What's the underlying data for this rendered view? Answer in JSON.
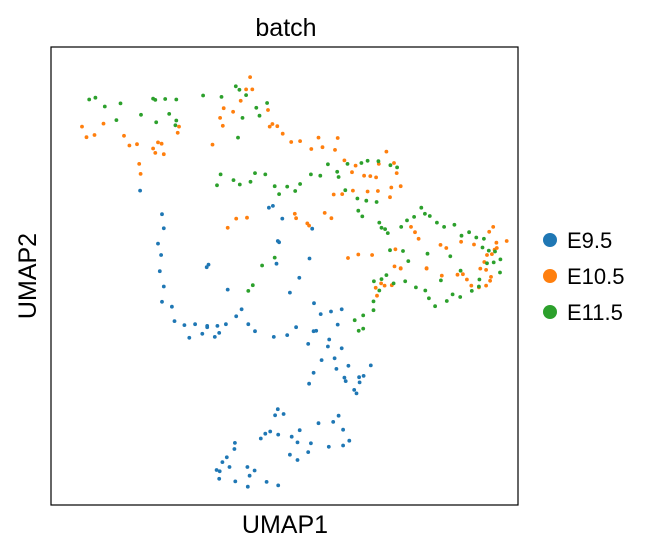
{
  "chart_data": {
    "type": "scatter",
    "title": "batch",
    "xlabel": "UMAP1",
    "ylabel": "UMAP2",
    "xlim": [
      0,
      100
    ],
    "ylim": [
      0,
      100
    ],
    "grid": false,
    "legend_position": "right",
    "series": [
      {
        "name": "E9.5",
        "color": "#1f77b4",
        "points": [
          [
            17.7,
            69.5
          ],
          [
            22.6,
            64.1
          ],
          [
            23.0,
            60.9
          ],
          [
            21.7,
            57.4
          ],
          [
            22.4,
            54.8
          ],
          [
            22.1,
            51.1
          ],
          [
            23.0,
            47.6
          ],
          [
            22.6,
            44.1
          ],
          [
            24.8,
            43.0
          ],
          [
            25.4,
            39.7
          ],
          [
            27.6,
            38.8
          ],
          [
            33.0,
            52.6
          ],
          [
            32.6,
            52.0
          ],
          [
            37.3,
            46.9
          ],
          [
            39.2,
            40.8
          ],
          [
            40.4,
            42.4
          ],
          [
            41.9,
            39.0
          ],
          [
            36.9,
            39.0
          ],
          [
            32.7,
            38.3
          ],
          [
            32.7,
            38.6
          ],
          [
            35.0,
            38.6
          ],
          [
            35.4,
            37.0
          ],
          [
            34.4,
            36.1
          ],
          [
            31.6,
            36.8
          ],
          [
            30.0,
            39.0
          ],
          [
            28.7,
            35.9
          ],
          [
            43.4,
            37.4
          ],
          [
            48.2,
            52.8
          ],
          [
            48.8,
            57.7
          ],
          [
            48.5,
            58.0
          ],
          [
            49.5,
            63.1
          ],
          [
            47.4,
            66.0
          ],
          [
            46.5,
            65.6
          ],
          [
            56.2,
            60.8
          ],
          [
            55.6,
            54.0
          ],
          [
            53.3,
            49.6
          ],
          [
            51.2,
            46.2
          ],
          [
            56.6,
            43.8
          ],
          [
            58.1,
            41.3
          ],
          [
            60.4,
            41.9
          ],
          [
            62.8,
            42.4
          ],
          [
            61.9,
            38.9
          ],
          [
            60.0,
            35.5
          ],
          [
            57.1,
            37.5
          ],
          [
            56.5,
            37.4
          ],
          [
            52.6,
            38.3
          ],
          [
            50.6,
            36.5
          ],
          [
            47.6,
            36.1
          ],
          [
            55.3,
            34.5
          ],
          [
            59.7,
            33.9
          ],
          [
            62.8,
            33.5
          ],
          [
            61.2,
            31.2
          ],
          [
            58.3,
            30.8
          ],
          [
            56.5,
            27.9
          ],
          [
            55.5,
            25.4
          ],
          [
            61.6,
            28.8
          ],
          [
            64.3,
            29.5
          ],
          [
            63.4,
            26.8
          ],
          [
            63.7,
            26.0
          ],
          [
            66.7,
            26.9
          ],
          [
            69.3,
            29.6
          ],
          [
            67.7,
            27.2
          ],
          [
            66.8,
            25.7
          ],
          [
            65.6,
            24.0
          ],
          [
            66.1,
            23.2
          ],
          [
            48.5,
            19.6
          ],
          [
            47.9,
            18.2
          ],
          [
            49.8,
            18.5
          ],
          [
            46.8,
            14.5
          ],
          [
            45.7,
            14.0
          ],
          [
            48.6,
            13.8
          ],
          [
            51.6,
            13.3
          ],
          [
            53.4,
            14.8
          ],
          [
            57.6,
            16.4
          ],
          [
            62.1,
            18.1
          ],
          [
            60.9,
            16.7
          ],
          [
            63.1,
            14.9
          ],
          [
            64.5,
            12.4
          ],
          [
            63.1,
            11.3
          ],
          [
            59.9,
            11.0
          ],
          [
            55.9,
            11.8
          ],
          [
            55.3,
            9.8
          ],
          [
            52.9,
            12.0
          ],
          [
            52.9,
            8.0
          ],
          [
            51.2,
            9.2
          ],
          [
            44.7,
            12.9
          ],
          [
            41.7,
            6.4
          ],
          [
            38.8,
            10.5
          ],
          [
            38.9,
            11.9
          ],
          [
            37.1,
            8.6
          ],
          [
            36.1,
            7.5
          ],
          [
            37.7,
            6.4
          ],
          [
            35.5,
            5.4
          ],
          [
            34.8,
            5.7
          ],
          [
            35.4,
            3.7
          ],
          [
            39.0,
            3.1
          ],
          [
            41.8,
            1.9
          ],
          [
            43.3,
            5.6
          ],
          [
            42.2,
            4.4
          ],
          [
            46.0,
            3.0
          ],
          [
            48.6,
            2.2
          ]
        ]
      },
      {
        "name": "E10.5",
        "color": "#ff7f0e",
        "points": [
          [
            4.7,
            84.1
          ],
          [
            5.7,
            81.7
          ],
          [
            7.5,
            82.2
          ],
          [
            9.5,
            84.8
          ],
          [
            14.1,
            82.0
          ],
          [
            15.3,
            79.8
          ],
          [
            17.0,
            80.1
          ],
          [
            20.6,
            79.1
          ],
          [
            21.7,
            80.5
          ],
          [
            22.5,
            80.2
          ],
          [
            21.1,
            78.1
          ],
          [
            23.0,
            77.8
          ],
          [
            17.8,
            73.3
          ],
          [
            17.5,
            75.6
          ],
          [
            33.9,
            80.0
          ],
          [
            26.1,
            82.7
          ],
          [
            26.4,
            84.1
          ],
          [
            36.2,
            84.3
          ],
          [
            35.6,
            86.1
          ],
          [
            36.4,
            88.3
          ],
          [
            38.5,
            87.5
          ],
          [
            40.2,
            90.0
          ],
          [
            41.4,
            92.6
          ],
          [
            42.8,
            92.6
          ],
          [
            42.3,
            95.4
          ],
          [
            46.3,
            87.9
          ],
          [
            47.3,
            84.7
          ],
          [
            46.7,
            84.1
          ],
          [
            48.4,
            84.2
          ],
          [
            49.6,
            82.5
          ],
          [
            51.5,
            80.6
          ],
          [
            53.5,
            80.8
          ],
          [
            57.6,
            81.6
          ],
          [
            56.0,
            79.0
          ],
          [
            58.5,
            79.4
          ],
          [
            61.9,
            81.5
          ],
          [
            61.3,
            78.8
          ],
          [
            63.4,
            76.4
          ],
          [
            65.9,
            75.2
          ],
          [
            65.1,
            73.7
          ],
          [
            67.8,
            72.9
          ],
          [
            69.2,
            72.8
          ],
          [
            70.5,
            72.5
          ],
          [
            71.1,
            75.6
          ],
          [
            72.8,
            78.4
          ],
          [
            74.5,
            75.8
          ],
          [
            75.1,
            73.5
          ],
          [
            76.0,
            70.5
          ],
          [
            73.9,
            70.2
          ],
          [
            73.6,
            68.0
          ],
          [
            70.9,
            69.4
          ],
          [
            68.6,
            69.3
          ],
          [
            65.3,
            69.5
          ],
          [
            62.9,
            68.7
          ],
          [
            61.0,
            68.6
          ],
          [
            59.0,
            64.4
          ],
          [
            55.1,
            62.0
          ],
          [
            55.5,
            61.5
          ],
          [
            52.6,
            63.2
          ],
          [
            52.3,
            64.2
          ],
          [
            41.6,
            63.3
          ],
          [
            39.2,
            63.1
          ],
          [
            37.3,
            61.0
          ],
          [
            60.5,
            63.2
          ],
          [
            64.2,
            54.1
          ],
          [
            66.5,
            54.9
          ],
          [
            69.6,
            54.8
          ],
          [
            74.6,
            52.2
          ],
          [
            76.0,
            51.7
          ],
          [
            76.0,
            51.8
          ],
          [
            72.4,
            47.8
          ],
          [
            70.7,
            45.5
          ],
          [
            70.4,
            47.3
          ],
          [
            71.6,
            48.3
          ],
          [
            74.0,
            47.9
          ],
          [
            81.8,
            51.7
          ],
          [
            81.8,
            51.8
          ],
          [
            85.2,
            50.1
          ],
          [
            88.7,
            50.3
          ],
          [
            89.9,
            50.4
          ],
          [
            90.8,
            49.2
          ],
          [
            91.8,
            47.8
          ],
          [
            93.5,
            47.4
          ],
          [
            95.1,
            47.8
          ],
          [
            96.0,
            48.9
          ],
          [
            96.2,
            49.8
          ],
          [
            95.1,
            51.4
          ],
          [
            93.8,
            51.7
          ],
          [
            94.7,
            53.2
          ],
          [
            95.3,
            54.8
          ],
          [
            96.4,
            55.0
          ],
          [
            97.0,
            56.0
          ],
          [
            97.4,
            57.6
          ],
          [
            95.8,
            60.1
          ],
          [
            96.7,
            61.2
          ],
          [
            99.7,
            58.0
          ],
          [
            97.5,
            56.4
          ],
          [
            92.4,
            57.2
          ],
          [
            89.5,
            57.8
          ],
          [
            86.2,
            56.4
          ],
          [
            84.9,
            57.1
          ],
          [
            80.0,
            58.5
          ],
          [
            79.2,
            60.0
          ],
          [
            78.3,
            61.2
          ],
          [
            74.8,
            56.1
          ]
        ]
      },
      {
        "name": "E11.5",
        "color": "#2ca02c",
        "points": [
          [
            6.3,
            90.3
          ],
          [
            7.7,
            90.7
          ],
          [
            9.8,
            88.7
          ],
          [
            13.3,
            89.4
          ],
          [
            12.4,
            85.6
          ],
          [
            17.9,
            86.8
          ],
          [
            20.6,
            90.5
          ],
          [
            21.1,
            90.2
          ],
          [
            23.3,
            90.4
          ],
          [
            25.8,
            90.3
          ],
          [
            25.8,
            85.5
          ],
          [
            25.6,
            84.4
          ],
          [
            24.2,
            87.0
          ],
          [
            21.3,
            85.1
          ],
          [
            31.8,
            91.2
          ],
          [
            35.9,
            90.9
          ],
          [
            39.1,
            93.3
          ],
          [
            39.9,
            92.5
          ],
          [
            41.4,
            91.3
          ],
          [
            43.7,
            88.4
          ],
          [
            44.4,
            86.6
          ],
          [
            46.1,
            89.5
          ],
          [
            40.6,
            86.1
          ],
          [
            39.6,
            81.6
          ],
          [
            35.7,
            73.2
          ],
          [
            34.9,
            70.7
          ],
          [
            38.6,
            71.9
          ],
          [
            40.0,
            70.9
          ],
          [
            42.4,
            71.5
          ],
          [
            43.4,
            73.5
          ],
          [
            45.7,
            73.2
          ],
          [
            47.8,
            70.5
          ],
          [
            48.8,
            68.7
          ],
          [
            50.6,
            70.4
          ],
          [
            52.4,
            69.4
          ],
          [
            53.5,
            71.0
          ],
          [
            55.9,
            73.2
          ],
          [
            58.0,
            72.9
          ],
          [
            59.7,
            75.5
          ],
          [
            61.8,
            73.8
          ],
          [
            64.1,
            75.6
          ],
          [
            67.2,
            75.8
          ],
          [
            68.6,
            76.3
          ],
          [
            71.0,
            76.2
          ],
          [
            73.7,
            75.3
          ],
          [
            75.2,
            74.8
          ],
          [
            70.6,
            66.9
          ],
          [
            68.3,
            67.2
          ],
          [
            66.5,
            64.9
          ],
          [
            67.4,
            63.6
          ],
          [
            71.2,
            62.2
          ],
          [
            71.7,
            61.0
          ],
          [
            72.5,
            60.7
          ],
          [
            73.1,
            59.8
          ],
          [
            76.1,
            61.2
          ],
          [
            77.4,
            62.7
          ],
          [
            79.0,
            63.5
          ],
          [
            80.6,
            65.6
          ],
          [
            81.4,
            64.2
          ],
          [
            82.5,
            63.7
          ],
          [
            84.1,
            62.2
          ],
          [
            85.7,
            61.2
          ],
          [
            88.0,
            61.7
          ],
          [
            89.6,
            59.2
          ],
          [
            91.3,
            60.0
          ],
          [
            92.9,
            58.8
          ],
          [
            94.3,
            56.5
          ],
          [
            94.6,
            58.5
          ],
          [
            95.7,
            55.8
          ],
          [
            97.1,
            55.6
          ],
          [
            98.3,
            53.8
          ],
          [
            96.8,
            53.1
          ],
          [
            95.3,
            52.9
          ],
          [
            93.6,
            49.2
          ],
          [
            93.5,
            47.6
          ],
          [
            91.9,
            46.6
          ],
          [
            89.3,
            45.2
          ],
          [
            87.6,
            45.8
          ],
          [
            86.3,
            44.3
          ],
          [
            83.7,
            43.1
          ],
          [
            82.3,
            44.9
          ],
          [
            81.5,
            46.7
          ],
          [
            79.4,
            47.4
          ],
          [
            77.0,
            48.8
          ],
          [
            74.4,
            48.3
          ],
          [
            72.8,
            50.2
          ],
          [
            71.7,
            49.3
          ],
          [
            70.0,
            48.8
          ],
          [
            71.2,
            46.7
          ],
          [
            69.9,
            44.2
          ],
          [
            69.9,
            42.2
          ],
          [
            67.6,
            41.0
          ],
          [
            65.7,
            39.9
          ],
          [
            67.6,
            38.0
          ],
          [
            66.6,
            37.5
          ],
          [
            41.9,
            46.6
          ],
          [
            42.9,
            47.9
          ],
          [
            47.8,
            54.2
          ],
          [
            45.0,
            52.4
          ],
          [
            73.6,
            55.9
          ],
          [
            76.5,
            55.7
          ],
          [
            77.7,
            53.4
          ],
          [
            82.0,
            55.1
          ],
          [
            98.2,
            50.8
          ],
          [
            62.1,
            72.6
          ],
          [
            63.6,
            69.6
          ],
          [
            66.3,
            67.7
          ],
          [
            87.1,
            54.5
          ],
          [
            89.4,
            51.2
          ],
          [
            85.0,
            49.0
          ]
        ]
      }
    ]
  }
}
